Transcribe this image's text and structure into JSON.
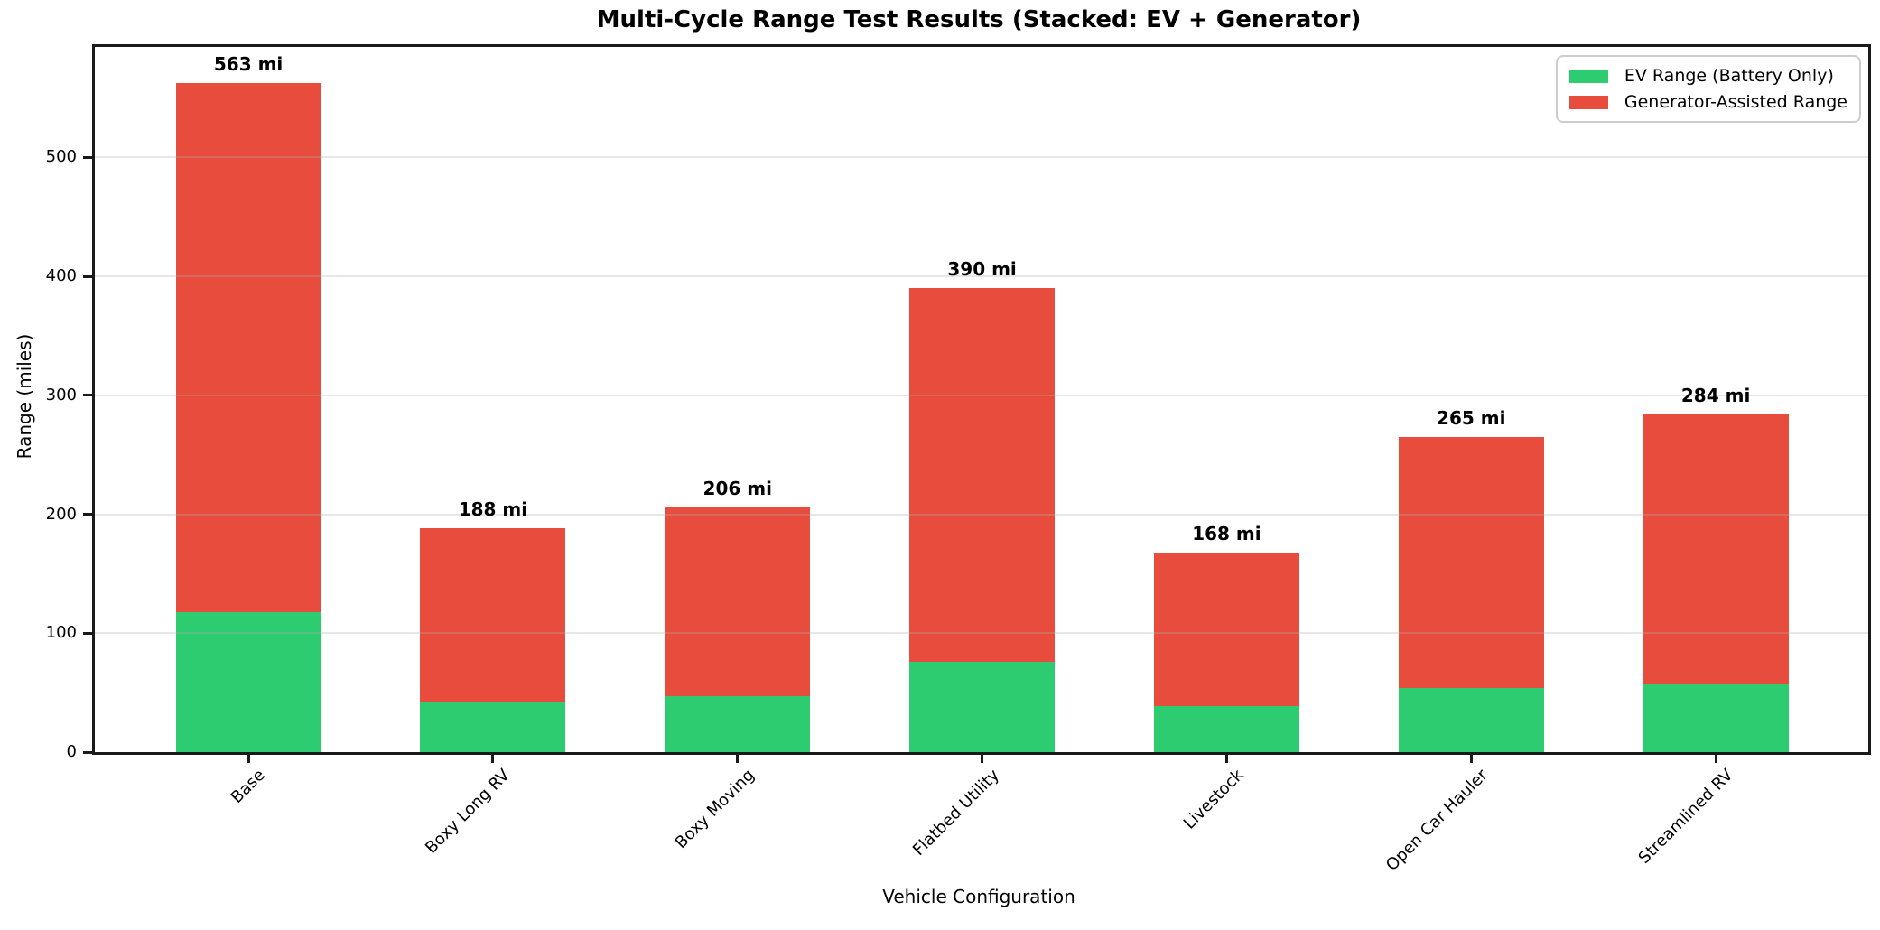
{
  "chart_data": {
    "type": "bar",
    "stacked": true,
    "title": "Multi-Cycle Range Test Results (Stacked: EV + Generator)",
    "xlabel": "Vehicle Configuration",
    "ylabel": "Range (miles)",
    "categories": [
      "Base",
      "Boxy Long RV",
      "Boxy Moving",
      "Flatbed Utility",
      "Livestock",
      "Open Car Hauler",
      "Streamlined RV"
    ],
    "series": [
      {
        "name": "EV Range (Battery Only)",
        "color": "#2ecc71",
        "values": [
          118,
          42,
          47,
          76,
          39,
          54,
          58
        ]
      },
      {
        "name": "Generator-Assisted Range",
        "color": "#e74c3c",
        "values": [
          445,
          146,
          159,
          314,
          129,
          211,
          226
        ]
      }
    ],
    "totals": [
      563,
      188,
      206,
      390,
      168,
      265,
      284
    ],
    "total_labels": [
      "563 mi",
      "188 mi",
      "206 mi",
      "390 mi",
      "168 mi",
      "265 mi",
      "284 mi"
    ],
    "yticks": [
      0,
      100,
      200,
      300,
      400,
      500
    ],
    "ylim": [
      0,
      593
    ],
    "grid": true,
    "legend_position": "upper right"
  }
}
